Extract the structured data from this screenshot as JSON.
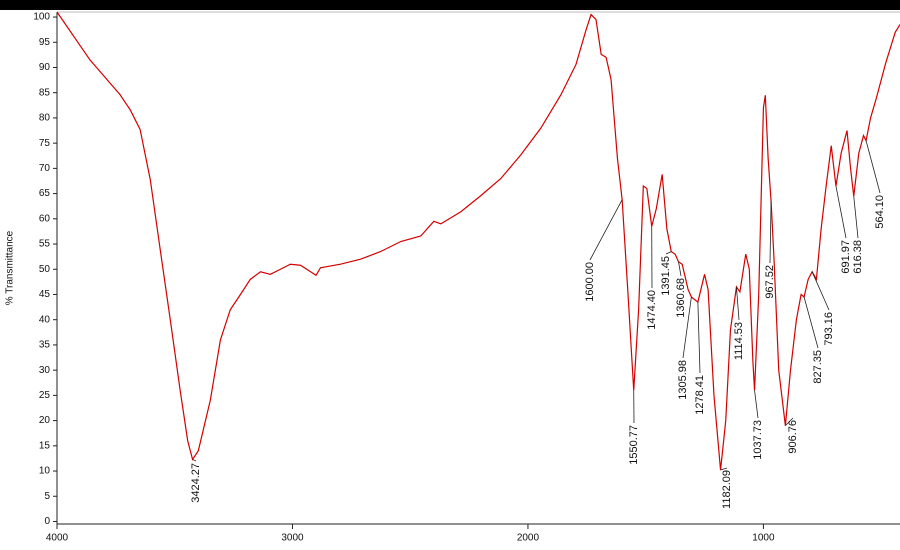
{
  "chart_data": {
    "type": "line",
    "ylabel": "% Transmittance",
    "color": "#d40000",
    "xlim": [
      4000,
      420
    ],
    "ylim": [
      -0.5,
      101
    ],
    "xticks": [
      4000,
      3000,
      2000,
      1000
    ],
    "yticks": [
      0,
      5,
      10,
      15,
      20,
      25,
      30,
      35,
      40,
      45,
      50,
      55,
      60,
      65,
      70,
      75,
      80,
      85,
      90,
      95,
      100
    ],
    "x": [
      4000,
      3860,
      3732,
      3689,
      3647,
      3604,
      3562,
      3519,
      3477,
      3445,
      3424.27,
      3400,
      3349,
      3306,
      3264,
      3221,
      3179,
      3136,
      3094,
      3051,
      3009,
      2966,
      2923,
      2900,
      2881,
      2796,
      2711,
      2626,
      2540,
      2455,
      2400,
      2370,
      2285,
      2200,
      2115,
      2030,
      1945,
      1860,
      1796,
      1753,
      1732,
      1711,
      1689,
      1668,
      1647,
      1620,
      1600,
      1575,
      1550.77,
      1530,
      1510,
      1495,
      1474.4,
      1455,
      1430,
      1410,
      1391.45,
      1375,
      1360.68,
      1345,
      1320,
      1305.98,
      1278.41,
      1250,
      1235,
      1210,
      1182.09,
      1160,
      1140,
      1114.53,
      1100,
      1075,
      1060,
      1045,
      1037.73,
      1020,
      1000,
      992,
      980,
      967.52,
      955,
      935,
      906.76,
      885,
      860,
      840,
      827.35,
      810,
      793.16,
      775,
      755,
      735,
      712,
      691.97,
      670,
      645,
      630,
      616.38,
      595,
      575,
      564.1,
      545,
      520,
      480,
      440,
      420
    ],
    "values": [
      101,
      91.5,
      84.6,
      81.6,
      77.7,
      67.8,
      54,
      40,
      26,
      16,
      12.3,
      14,
      24,
      36,
      42,
      45,
      48,
      49.5,
      49,
      50,
      51,
      50.8,
      49.5,
      48.8,
      50.3,
      51,
      52,
      53.5,
      55.5,
      56.6,
      59.5,
      59,
      61.4,
      64.6,
      68,
      72.7,
      78,
      84.6,
      90.6,
      97.5,
      100.5,
      99.5,
      92.6,
      92,
      87.6,
      72,
      63.8,
      45,
      26,
      42,
      66.5,
      66,
      58.5,
      62,
      68.8,
      58,
      53.5,
      53,
      51.5,
      51,
      46,
      44.5,
      43.5,
      49,
      46,
      25,
      10.2,
      20,
      38,
      46.5,
      45.5,
      53,
      50,
      32,
      26,
      45,
      82,
      84.5,
      72,
      63.5,
      52,
      30,
      19,
      30,
      40,
      45,
      44.5,
      48,
      49.5,
      48,
      58,
      66,
      74.5,
      66.5,
      73,
      77.5,
      70,
      64.5,
      73,
      76.5,
      75.5,
      80,
      84,
      91,
      97,
      98.5
    ],
    "annotations": [
      {
        "x": 3424.27,
        "label": "3424.27"
      },
      {
        "x": 1600,
        "label": "1600.00"
      },
      {
        "x": 1550.77,
        "label": "1550.77"
      },
      {
        "x": 1474.4,
        "label": "1474.40"
      },
      {
        "x": 1391.45,
        "label": "1391.45"
      },
      {
        "x": 1360.68,
        "label": "1360.68"
      },
      {
        "x": 1305.98,
        "label": "1305.98"
      },
      {
        "x": 1278.41,
        "label": "1278.41"
      },
      {
        "x": 1182.09,
        "label": "1182.09"
      },
      {
        "x": 1114.53,
        "label": "1114.53"
      },
      {
        "x": 1037.73,
        "label": "1037.73"
      },
      {
        "x": 967.52,
        "label": "967.52"
      },
      {
        "x": 906.76,
        "label": "906.76"
      },
      {
        "x": 827.35,
        "label": "827.35"
      },
      {
        "x": 793.16,
        "label": "793.16"
      },
      {
        "x": 691.97,
        "label": "691.97"
      },
      {
        "x": 616.38,
        "label": "616.38"
      },
      {
        "x": 564.1,
        "label": "564.10"
      }
    ]
  }
}
